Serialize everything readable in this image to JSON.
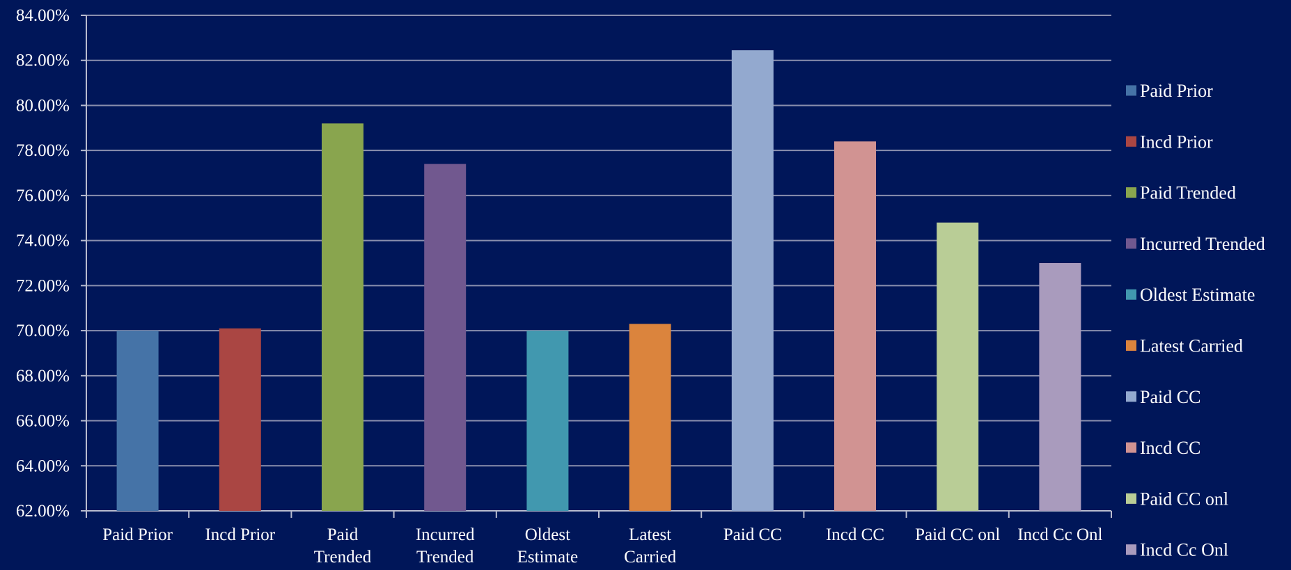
{
  "colors": {
    "background": "#001659",
    "gridline": "#8a8fae",
    "axis": "#b8bccf",
    "text": "#ffffff"
  },
  "chart_data": {
    "type": "bar",
    "title": "",
    "xlabel": "",
    "ylabel": "",
    "ylim": [
      62,
      84
    ],
    "y_tick_step": 2,
    "y_tick_format": "percent_2dp",
    "grid": true,
    "legend_position": "right",
    "categories": [
      [
        "Paid Prior"
      ],
      [
        "Incd Prior"
      ],
      [
        "Paid",
        "Trended"
      ],
      [
        "Incurred",
        "Trended"
      ],
      [
        "Oldest",
        "Estimate"
      ],
      [
        "Latest",
        "Carried"
      ],
      [
        "Paid CC"
      ],
      [
        "Incd CC"
      ],
      [
        "Paid CC onl"
      ],
      [
        "Incd Cc Onl"
      ]
    ],
    "series": [
      {
        "name": "Paid Prior",
        "value": 70.0,
        "color": "#4573a7"
      },
      {
        "name": "Incd Prior",
        "value": 70.1,
        "color": "#aa4643"
      },
      {
        "name": "Paid Trended",
        "value": 79.2,
        "color": "#89a54e"
      },
      {
        "name": "Incurred Trended",
        "value": 77.4,
        "color": "#71588f"
      },
      {
        "name": "Oldest Estimate",
        "value": 70.0,
        "color": "#4198af"
      },
      {
        "name": "Latest Carried",
        "value": 70.3,
        "color": "#db843d"
      },
      {
        "name": "Paid CC",
        "value": 82.45,
        "color": "#93a9cf"
      },
      {
        "name": "Incd CC",
        "value": 78.4,
        "color": "#d19392"
      },
      {
        "name": "Paid CC onl",
        "value": 74.8,
        "color": "#b9cd96"
      },
      {
        "name": "Incd Cc Onl",
        "value": 73.0,
        "color": "#a99bbd"
      }
    ]
  }
}
